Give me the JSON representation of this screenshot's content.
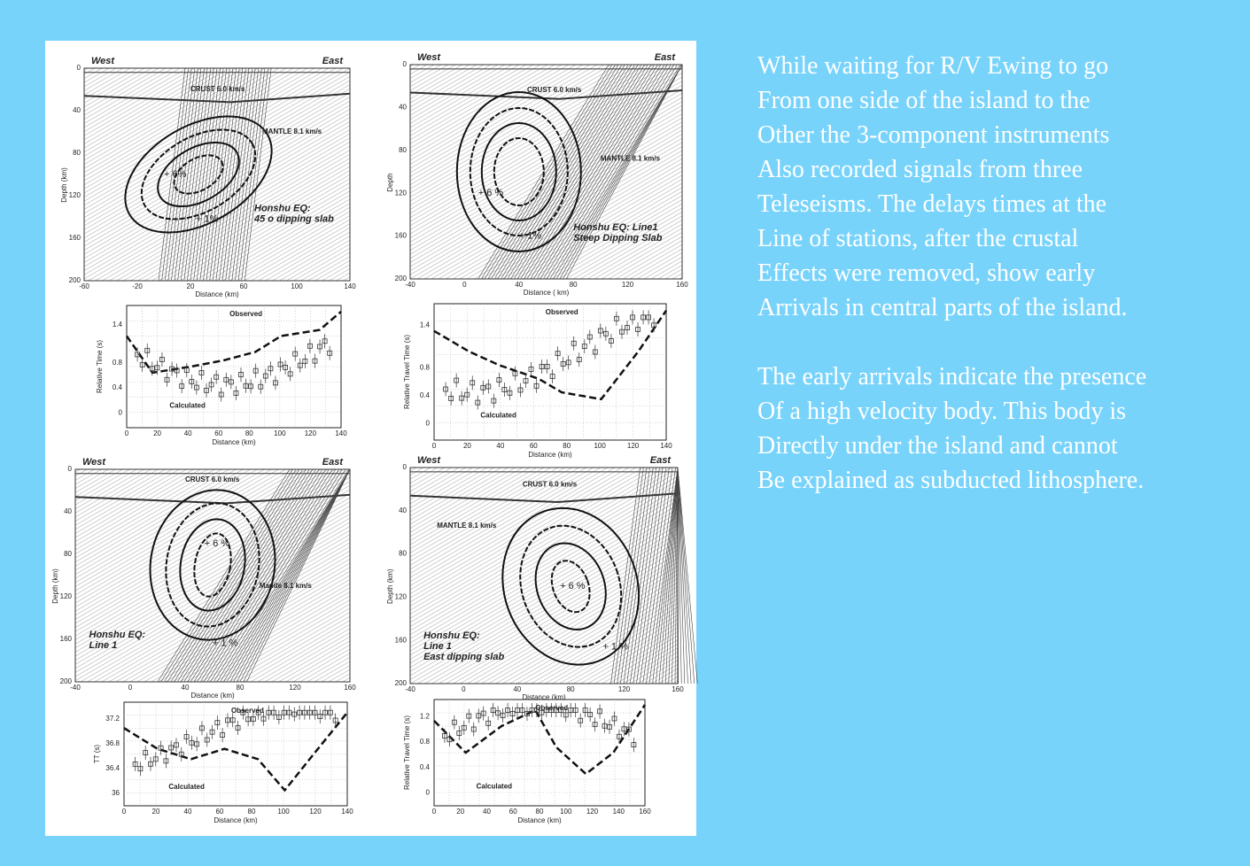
{
  "text": {
    "paragraphs": [
      [
        "While waiting for R/V Ewing to go",
        "From one side of the island to the",
        "Other the 3-component instruments",
        "Also recorded signals from three",
        "Teleseisms.  The delays times at the",
        "Line of stations, after the crustal",
        "Effects were removed, show early",
        "Arrivals in central parts of the island."
      ],
      [
        "The early arrivals indicate the presence",
        "Of a high velocity body.  This body is",
        "Directly under the island and cannot",
        "Be explained as subducted lithosphere."
      ]
    ]
  },
  "figure": {
    "sections": [
      {
        "west": "West",
        "east": "East",
        "crust": "CRUST  6.0  km/s",
        "mantle": "MANTLE   8.1  km/s",
        "plus6": "+ 6%",
        "plus1": "+ 1%",
        "caption": [
          "Honshu EQ:",
          "45 o dipping slab"
        ],
        "ylabel": "Depth (km)",
        "yticks": [
          "0",
          "40",
          "80",
          "120",
          "160",
          "200"
        ],
        "xticks": [
          "-60",
          "-20",
          "20",
          "60",
          "100",
          "140"
        ],
        "xlabel": "Distance (km)"
      },
      {
        "west": "West",
        "east": "East",
        "crust": "CRUST 6.0 km/s",
        "mantle": "MANTLE   8.1 km/s",
        "plus6": "+ 6 %",
        "plus1": "+ 1%",
        "caption": [
          "Honshu EQ: Line1",
          "Steep Dipping Slab"
        ],
        "ylabel": "Depth",
        "yticks": [
          "0",
          "40",
          "80",
          "120",
          "160",
          "200"
        ],
        "xticks": [
          "-40",
          "0",
          "40",
          "80",
          "120",
          "160"
        ],
        "xlabel": "Distance  ( km)"
      },
      {
        "west": "West",
        "east": "East",
        "crust": "CRUST     6.0  km/s",
        "mantle": "Mantle    8.1   km/s",
        "plus6": "+ 6 %",
        "plus1": "+ 1 %",
        "caption": [
          "Honshu EQ:",
          "Line 1"
        ],
        "ylabel": "Depth (km)",
        "yticks": [
          "0",
          "40",
          "80",
          "120",
          "160",
          "200"
        ],
        "xticks": [
          "-40",
          "0",
          "40",
          "80",
          "120",
          "160"
        ],
        "xlabel": "Distance (km)"
      },
      {
        "west": "West",
        "east": "East",
        "crust": "CRUST 6.0 km/s",
        "mantle": "MANTLE 8.1 km/s",
        "plus6": "+ 6 %",
        "plus1": "+ 1 %",
        "caption": [
          "Honshu EQ:",
          "Line 1",
          "East dipping slab"
        ],
        "ylabel": "Depth (km)",
        "yticks": [
          "0",
          "40",
          "80",
          "120",
          "160",
          "200"
        ],
        "xticks": [
          "-40",
          "0",
          "40",
          "80",
          "120",
          "160"
        ],
        "xlabel": "Distance (km)"
      }
    ],
    "plots": [
      {
        "ylabel": "Relative Time (s)",
        "yticks": [
          "0",
          "0.4",
          "0.8",
          "1.4"
        ],
        "xticks": [
          "0",
          "20",
          "40",
          "60",
          "80",
          "100",
          "120",
          "140"
        ],
        "xlabel": "Distance (km)",
        "observed": "Observed",
        "calculated": "Calculated"
      },
      {
        "ylabel": "Relative Travel Time (s)",
        "yticks": [
          "0",
          "0.4",
          "0.8",
          "1.4"
        ],
        "xticks": [
          "0",
          "20",
          "40",
          "60",
          "80",
          "100",
          "120",
          "140"
        ],
        "xlabel": "Distance (km)",
        "observed": "Observed",
        "calculated": "Calculated"
      },
      {
        "ylabel": "TT (s)",
        "yticks": [
          "36",
          "36.4",
          "36.8",
          "37.2"
        ],
        "xticks": [
          "0",
          "20",
          "40",
          "60",
          "80",
          "100",
          "120",
          "140"
        ],
        "xlabel": "Distance (km)",
        "observed": "Observed",
        "calculated": "Calculated"
      },
      {
        "ylabel": "Relative Travel Time (s)",
        "yticks": [
          "0",
          "0.4",
          "0.8",
          "1.2"
        ],
        "xticks": [
          "0",
          "20",
          "40",
          "60",
          "80",
          "100",
          "120",
          "140",
          "160"
        ],
        "xlabel": "Distance (km)",
        "observed": "Observed",
        "calculated": "Calculated"
      }
    ]
  }
}
